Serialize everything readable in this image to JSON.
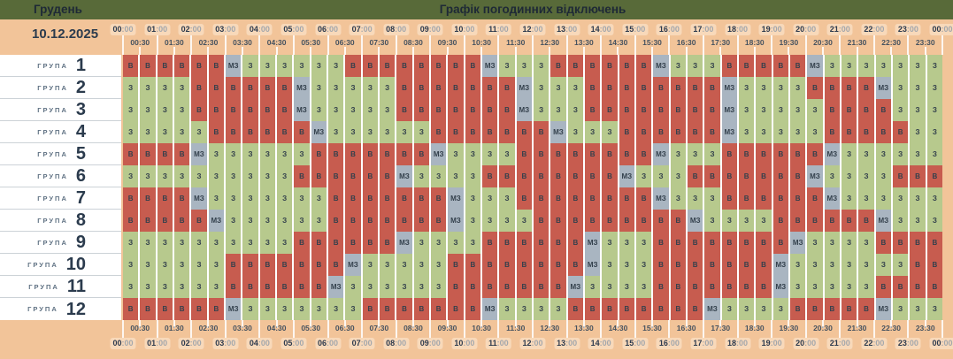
{
  "header": {
    "month": "Грудень",
    "title": "Графік погодинних відключень",
    "date": "10.12.2025"
  },
  "colors": {
    "header_bg": "#586a39",
    "band_bg": "#f2c499",
    "outage_red": "#c75c4f",
    "powered_green": "#b7c98d",
    "maybe_gray": "#a9b5c1"
  },
  "cell_legend": {
    "outage": "В",
    "powered": "З",
    "maybe_powered": "МЗ"
  },
  "timeline": {
    "hour_labels": [
      "00:00",
      "01:00",
      "02:00",
      "03:00",
      "04:00",
      "05:00",
      "06:00",
      "07:00",
      "08:00",
      "09:00",
      "10:00",
      "11:00",
      "12:00",
      "13:00",
      "14:00",
      "15:00",
      "16:00",
      "17:00",
      "18:00",
      "19:00",
      "20:00",
      "21:00",
      "22:00",
      "23:00",
      "00:00"
    ],
    "half_hour_labels": [
      "00:30",
      "01:30",
      "02:30",
      "03:30",
      "04:30",
      "05:30",
      "06:30",
      "07:30",
      "08:30",
      "09:30",
      "10:30",
      "11:30",
      "12:30",
      "13:30",
      "14:30",
      "15:30",
      "16:30",
      "17:30",
      "18:30",
      "19:30",
      "20:30",
      "21:30",
      "22:30",
      "23:30"
    ]
  },
  "groups": [
    {
      "label": "ГРУПА",
      "number": "1",
      "slots": "В В В В В В МЗ З З З З З З В В В В В В В В МЗ З З З В В В В В В МЗ З З З В В В В В МЗ З З З З З З З"
    },
    {
      "label": "ГРУПА",
      "number": "2",
      "slots": "З З З З В В В В В В МЗ З З З З З В В В В В В В МЗ З З З В В В В В В В В МЗ З З З З В В В В МЗ З З З"
    },
    {
      "label": "ГРУПА",
      "number": "3",
      "slots": "З З З З В В В В В В МЗ З З З З З В В В В В В В МЗ З З З В В В В В В В В МЗ З З З З З В В В В З З З"
    },
    {
      "label": "ГРУПА",
      "number": "4",
      "slots": "З З З З З В В В В В В МЗ З З З З З З В В В В В В В МЗ З З З В В В В В В МЗ З З З З З В В В В В З З"
    },
    {
      "label": "ГРУПА",
      "number": "5",
      "slots": "В В В В МЗ З З З З З З В В В В В В В МЗ З З З З В В В В В В В В МЗ З З З В В В В В В МЗ З З З З З З"
    },
    {
      "label": "ГРУПА",
      "number": "6",
      "slots": "З З З З З З З З З З В В В В В В МЗ З З З З В В В В В В В В МЗ З З З В В В В В В В МЗ З З З З В В В"
    },
    {
      "label": "ГРУПА",
      "number": "7",
      "slots": "В В В В МЗ З З З З З З З В В В В В В В МЗ З З З В В В В В В В В МЗ З З З В В В В В В МЗ З З З З З З"
    },
    {
      "label": "ГРУПА",
      "number": "8",
      "slots": "В В В В В МЗ З З З З З З В В В В В В В МЗ З З З З В В В В В В В В В МЗ З З З З В В В В В В МЗ З З З"
    },
    {
      "label": "ГРУПА",
      "number": "9",
      "slots": "З З З З З З З З З З В В В В В В МЗ З З З З В В В В В В МЗ З З З В В В В В В В В МЗ З З З З В В В В"
    },
    {
      "label": "ГРУПА",
      "number": "10",
      "slots": "З З З З З З В В В В В В В МЗ З З З З З В В В В В В В В МЗ З З З В В В В В В В МЗ З З З З З З З В В"
    },
    {
      "label": "ГРУПА",
      "number": "11",
      "slots": "З З З З З З В В В В В В МЗ З З З З З З В В В В В В В МЗ З З З З В В В В В В В МЗ З З З З З В В В В"
    },
    {
      "label": "ГРУПА",
      "number": "12",
      "slots": "В В В В В В МЗ З З З З З З З В В В В В В В МЗ З З З З В В В В В В В В МЗ З З З З В В В В В МЗ З З З"
    }
  ]
}
